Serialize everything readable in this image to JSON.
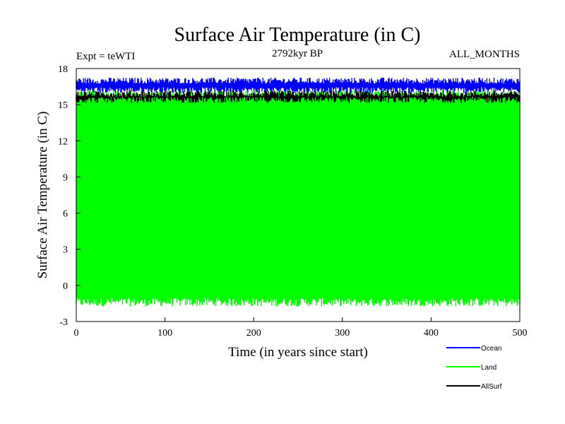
{
  "chart_data": {
    "type": "line",
    "title": "Surface Air Temperature (in C)",
    "subtitle": "2792kyr BP",
    "annotation_left": "Expt = teWTI",
    "annotation_right": "ALL_MONTHS",
    "xlabel": "Time (in years since start)",
    "ylabel": "Surface Air Temperature (in C)",
    "xlim": [
      0,
      500
    ],
    "ylim": [
      -3,
      18
    ],
    "xticks": [
      0,
      100,
      200,
      300,
      400,
      500
    ],
    "yticks": [
      -3,
      0,
      3,
      6,
      9,
      12,
      15,
      18
    ],
    "grid": false,
    "legend_position": "bottom-right",
    "series": [
      {
        "name": "Ocean",
        "color": "#0000ff",
        "mean_upper": 17.0,
        "mean_lower": 16.2,
        "noise": 0.25
      },
      {
        "name": "Land",
        "color": "#00ff00",
        "mean_upper": 15.9,
        "mean_lower": -1.4,
        "noise": 0.35
      },
      {
        "name": "AllSurf",
        "color": "#000000",
        "mean_upper": 15.9,
        "mean_lower": 15.4,
        "noise": 0.25
      }
    ]
  }
}
